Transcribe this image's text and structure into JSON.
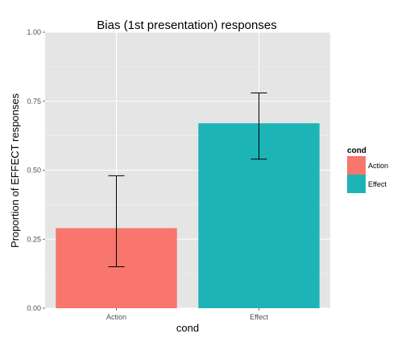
{
  "chart_data": {
    "type": "bar",
    "title": "Bias (1st presentation) responses",
    "xlabel": "cond",
    "ylabel": "Proportion of EFFECT responses",
    "categories": [
      "Action",
      "Effect"
    ],
    "values": [
      0.29,
      0.67
    ],
    "error_bars": [
      {
        "low": 0.15,
        "high": 0.48
      },
      {
        "low": 0.54,
        "high": 0.78
      }
    ],
    "colors": [
      "#F8766D",
      "#1DB4B7"
    ],
    "ylim": [
      0,
      1
    ],
    "y_ticks": [
      0,
      0.25,
      0.5,
      0.75,
      1
    ],
    "y_tick_labels": [
      "0.00",
      "0.25",
      "0.50",
      "0.75",
      "1.00"
    ],
    "grid": true,
    "panel_background": "#E5E5E5",
    "legend": {
      "title": "cond",
      "position": "right",
      "items": [
        "Action",
        "Effect"
      ]
    }
  }
}
